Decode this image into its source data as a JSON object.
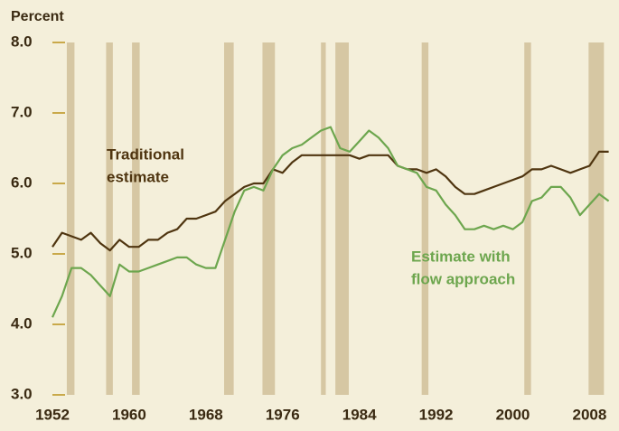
{
  "chart_data": {
    "type": "line",
    "y_axis_label": "Percent",
    "x": [
      1952,
      1953,
      1954,
      1955,
      1956,
      1957,
      1958,
      1959,
      1960,
      1961,
      1962,
      1963,
      1964,
      1965,
      1966,
      1967,
      1968,
      1969,
      1970,
      1971,
      1972,
      1973,
      1974,
      1975,
      1976,
      1977,
      1978,
      1979,
      1980,
      1981,
      1982,
      1983,
      1984,
      1985,
      1986,
      1987,
      1988,
      1989,
      1990,
      1991,
      1992,
      1993,
      1994,
      1995,
      1996,
      1997,
      1998,
      1999,
      2000,
      2001,
      2002,
      2003,
      2004,
      2005,
      2006,
      2007,
      2008,
      2009,
      2010
    ],
    "series": [
      {
        "name": "Traditional estimate",
        "color": "#4f3510",
        "values": [
          5.1,
          5.3,
          5.25,
          5.2,
          5.3,
          5.15,
          5.05,
          5.2,
          5.1,
          5.1,
          5.2,
          5.2,
          5.3,
          5.35,
          5.5,
          5.5,
          5.55,
          5.6,
          5.75,
          5.85,
          5.95,
          6.0,
          6.0,
          6.2,
          6.15,
          6.3,
          6.4,
          6.4,
          6.4,
          6.4,
          6.4,
          6.4,
          6.35,
          6.4,
          6.4,
          6.4,
          6.25,
          6.2,
          6.2,
          6.15,
          6.2,
          6.1,
          5.95,
          5.85,
          5.85,
          5.9,
          5.95,
          6.0,
          6.05,
          6.1,
          6.2,
          6.2,
          6.25,
          6.2,
          6.15,
          6.2,
          6.25,
          6.45,
          6.45
        ]
      },
      {
        "name": "Estimate with flow approach",
        "color": "#6da64e",
        "values": [
          4.1,
          4.4,
          4.8,
          4.8,
          4.7,
          4.55,
          4.4,
          4.85,
          4.75,
          4.75,
          4.8,
          4.85,
          4.9,
          4.95,
          4.95,
          4.85,
          4.8,
          4.8,
          5.2,
          5.6,
          5.9,
          5.95,
          5.9,
          6.2,
          6.4,
          6.5,
          6.55,
          6.65,
          6.75,
          6.8,
          6.5,
          6.45,
          6.6,
          6.75,
          6.65,
          6.5,
          6.25,
          6.2,
          6.15,
          5.95,
          5.9,
          5.7,
          5.55,
          5.35,
          5.35,
          5.4,
          5.35,
          5.4,
          5.35,
          5.45,
          5.75,
          5.8,
          5.95,
          5.95,
          5.8,
          5.55,
          5.7,
          5.85,
          5.75
        ]
      }
    ],
    "annotations": [
      {
        "lines": [
          "Traditional",
          "estimate"
        ],
        "color": "#4f3510"
      },
      {
        "lines": [
          "Estimate with",
          "flow approach"
        ],
        "color": "#6da64e"
      }
    ],
    "recessions": [
      [
        1953.5,
        1954.3
      ],
      [
        1957.6,
        1958.3
      ],
      [
        1960.3,
        1961.1
      ],
      [
        1969.9,
        1970.9
      ],
      [
        1973.9,
        1975.2
      ],
      [
        1980.0,
        1980.5
      ],
      [
        1981.5,
        1982.9
      ],
      [
        1990.5,
        1991.2
      ],
      [
        2001.2,
        2001.9
      ],
      [
        2007.9,
        2009.5
      ]
    ],
    "recession_color": "#d6c7a3",
    "xlim": [
      1952,
      2010.6
    ],
    "xticks": [
      1952,
      1960,
      1968,
      1976,
      1984,
      1992,
      2000,
      2008
    ],
    "ylim": [
      3,
      8
    ],
    "yticks": [
      {
        "value": 8,
        "label": "8.0"
      },
      {
        "value": 7,
        "label": "7.0"
      },
      {
        "value": 6,
        "label": "6.0"
      },
      {
        "value": 5,
        "label": "5.0"
      },
      {
        "value": 4,
        "label": "4.0"
      },
      {
        "value": 3,
        "label": "3.0"
      }
    ],
    "grid": false
  }
}
